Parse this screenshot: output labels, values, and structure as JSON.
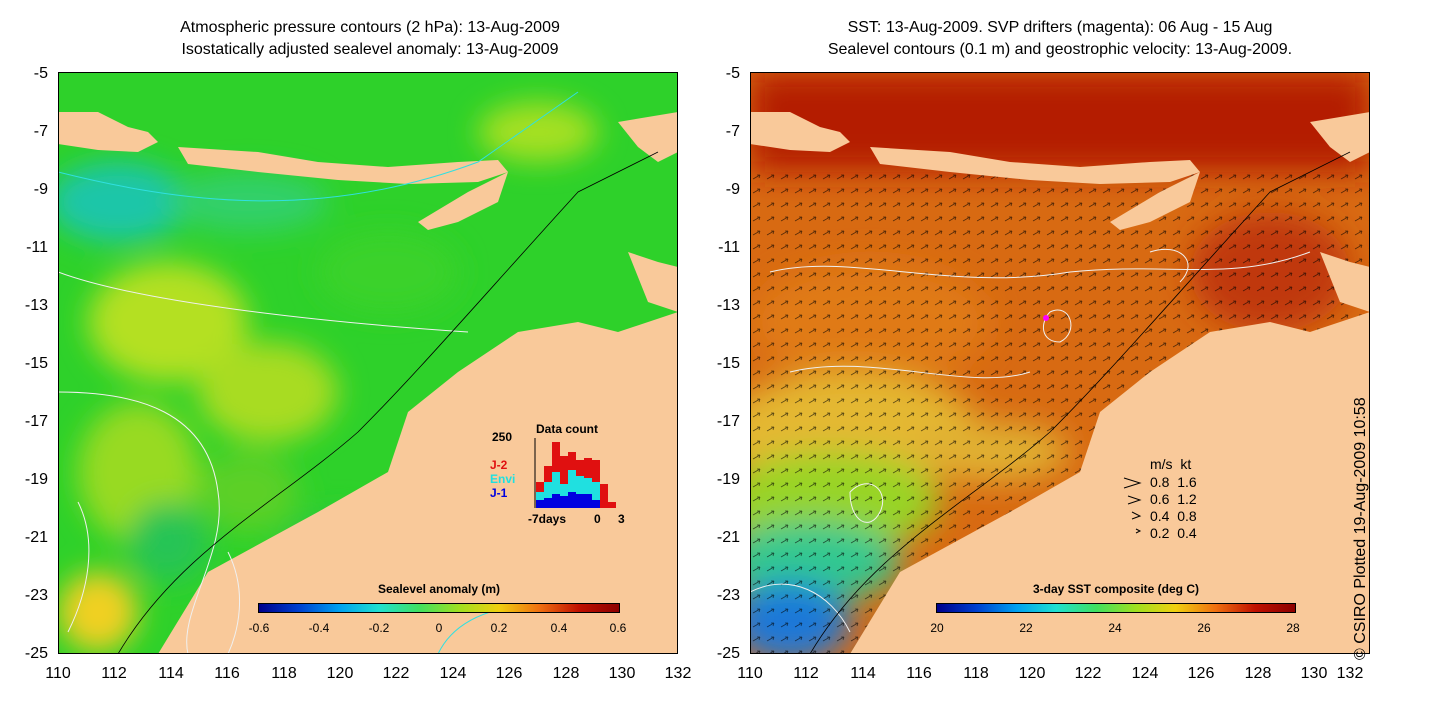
{
  "left_panel": {
    "title_line1": "Atmospheric pressure contours (2 hPa): 13-Aug-2009",
    "title_line2": "Isostatically adjusted sealevel anomaly: 13-Aug-2009",
    "colorbar_title": "Sealevel anomaly (m)",
    "colorbar_ticks": [
      "-0.6",
      "-0.4",
      "-0.2",
      "0",
      "0.2",
      "0.4",
      "0.6"
    ],
    "inset": {
      "title": "Data count",
      "y_max": "250",
      "series": [
        {
          "name": "J-2",
          "color": "#e01010"
        },
        {
          "name": "Envi",
          "color": "#20e0e0"
        },
        {
          "name": "J-1",
          "color": "#0000e0"
        }
      ],
      "x_labels": [
        "-7days",
        "0",
        "3"
      ]
    }
  },
  "right_panel": {
    "title_line1": "SST: 13-Aug-2009. SVP drifters (magenta): 06 Aug - 15 Aug",
    "title_line2": "Sealevel contours (0.1 m) and geostrophic velocity: 13-Aug-2009.",
    "colorbar_title": "3-day SST composite (deg C)",
    "colorbar_ticks": [
      "20",
      "22",
      "24",
      "26",
      "28"
    ],
    "velocity_legend": {
      "header": "m/s  kt",
      "rows": [
        "0.8  1.6",
        "0.6  1.2",
        "0.4  0.8",
        "0.2  0.4"
      ]
    }
  },
  "axes": {
    "y_ticks": [
      "-5",
      "-7",
      "-9",
      "-11",
      "-13",
      "-15",
      "-17",
      "-19",
      "-21",
      "-23",
      "-25"
    ],
    "x_ticks": [
      "110",
      "112",
      "114",
      "116",
      "118",
      "120",
      "122",
      "124",
      "126",
      "128",
      "130",
      "132"
    ]
  },
  "credit": "© CSIRO Plotted 19-Aug-2009 10:58",
  "colors": {
    "land": "#f9c99a",
    "sla_green": "#2ed12a",
    "sst_red": "#b41a00",
    "sst_orange": "#d86a12"
  }
}
